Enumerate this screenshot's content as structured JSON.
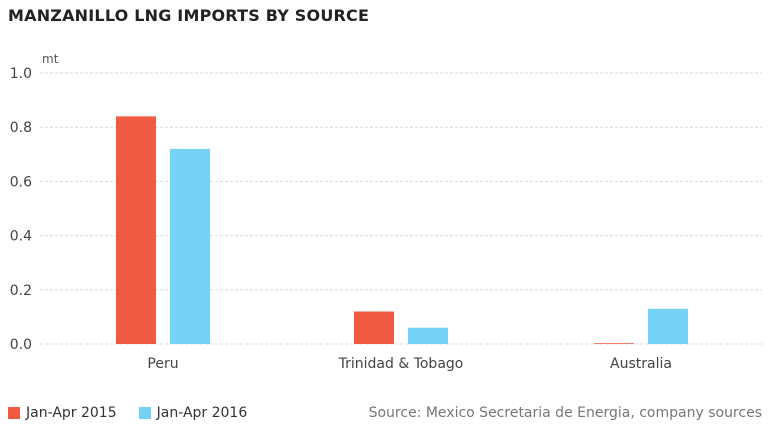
{
  "title": "MANZANILLO LNG IMPORTS BY SOURCE",
  "source": "Source: Mexico Secretaria de Energia, company sources",
  "colors": {
    "series_2015": "#f05a40",
    "series_2016": "#76d2f4",
    "grid": "#d8d8d8",
    "axis_text": "#444444"
  },
  "chart_data": {
    "type": "bar",
    "title": "MANZANILLO LNG IMPORTS BY SOURCE",
    "ylabel": "mt",
    "xlabel": "",
    "ylim": [
      0,
      1.0
    ],
    "yticks": [
      "0.0",
      "0.2",
      "0.4",
      "0.6",
      "0.8",
      "1.0"
    ],
    "grid": true,
    "legend_position": "bottom-left",
    "categories": [
      "Peru",
      "Trinidad & Tobago",
      "Australia"
    ],
    "series": [
      {
        "name": "Jan-Apr 2015",
        "values": [
          0.84,
          0.12,
          0.002
        ]
      },
      {
        "name": "Jan-Apr 2016",
        "values": [
          0.72,
          0.06,
          0.13
        ]
      }
    ]
  }
}
